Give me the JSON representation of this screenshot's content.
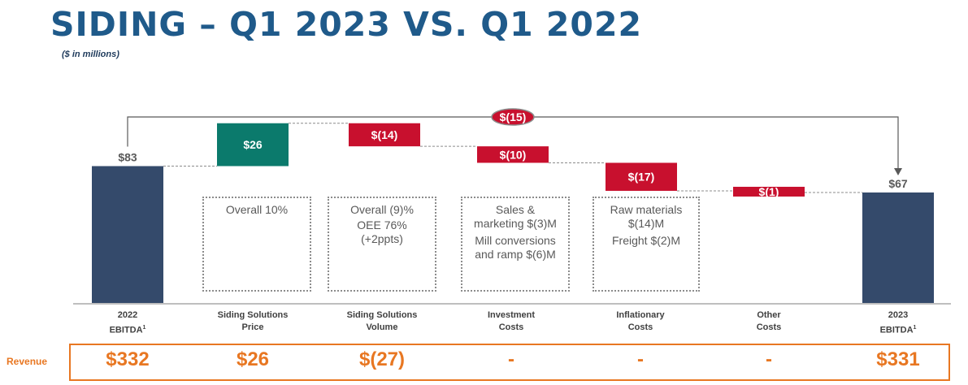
{
  "header": {
    "title": "SIDING – Q1 2023 VS. Q1 2022",
    "subtitle": "($ in millions)"
  },
  "colors": {
    "start_end": "#344a6b",
    "increase": "#0b7a6c",
    "decrease": "#c8102e",
    "accent": "#e87722",
    "title": "#1f5a8a"
  },
  "chart_data": {
    "type": "bar",
    "subtype": "waterfall",
    "categories": [
      "2022 EBITDA",
      "Siding Solutions Price",
      "Siding Solutions Volume",
      "Investment Costs",
      "Inflationary Costs",
      "Other Costs",
      "2023 EBITDA"
    ],
    "categories_display": [
      {
        "line1": "2022",
        "line2": "EBITDA",
        "sup": "1"
      },
      {
        "line1": "Siding Solutions",
        "line2": "Price",
        "sup": ""
      },
      {
        "line1": "Siding Solutions",
        "line2": "Volume",
        "sup": ""
      },
      {
        "line1": "Investment",
        "line2": "Costs",
        "sup": ""
      },
      {
        "line1": "Inflationary",
        "line2": "Costs",
        "sup": ""
      },
      {
        "line1": "Other",
        "line2": "Costs",
        "sup": ""
      },
      {
        "line1": "2023",
        "line2": "EBITDA",
        "sup": "1"
      }
    ],
    "values": [
      83,
      26,
      -14,
      -10,
      -17,
      -1,
      67
    ],
    "kinds": [
      "total",
      "increase",
      "decrease",
      "decrease",
      "decrease",
      "decrease",
      "total"
    ],
    "labels": [
      "$83",
      "$26",
      "$(14)",
      "$(10)",
      "$(17)",
      "$(1)",
      "$67"
    ],
    "total_change": {
      "value": -15,
      "label": "$(15)"
    },
    "notes": [
      [],
      [
        "Overall 10%"
      ],
      [
        "Overall (9)%",
        "OEE 76%",
        "(+2ppts)"
      ],
      [
        "Sales & marketing $(3)M",
        "Mill conversions and ramp $(6)M"
      ],
      [
        "Raw materials $(14)M",
        "Freight $(2)M"
      ],
      [],
      []
    ],
    "revenue": {
      "label": "Revenue",
      "values": [
        "$332",
        "$26",
        "$(27)",
        "-",
        "-",
        "-",
        "$331"
      ]
    }
  }
}
